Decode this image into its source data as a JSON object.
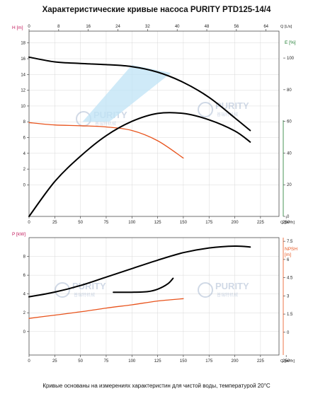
{
  "title": "Характеристические кривые насоса PURITY PTD125-14/4",
  "footnote": "Кривые основаны на измерениях характеристин для чистой воды, температурой 20°С",
  "watermark": {
    "brand": "PURITY",
    "sub": "普瑞特机械"
  },
  "colors": {
    "black": "#000000",
    "orange": "#e8531c",
    "blue_area": "#bfe3f5",
    "pink_axis": "#c2185b",
    "green_axis": "#1b7a2e",
    "blue_axis": "#1565c0",
    "grid": "#d9d9d9"
  },
  "chart_data": [
    {
      "type": "line",
      "id": "upper",
      "top_axis": {
        "label": "Q [L/s]",
        "ticks": [
          0,
          8,
          16,
          24,
          32,
          40,
          48,
          56,
          64
        ],
        "range": [
          0,
          67.5
        ]
      },
      "bottom_axis": {
        "label": "Q [m³/h]",
        "ticks": [
          0,
          25,
          50,
          75,
          100,
          125,
          150,
          175,
          200,
          225,
          250
        ],
        "range": [
          0,
          243
        ]
      },
      "left_axis": {
        "label": "H [m]",
        "ticks": [
          0,
          2,
          4,
          6,
          8,
          10,
          12,
          14,
          16,
          18
        ],
        "range": [
          -4,
          19.5
        ]
      },
      "right_axis": {
        "label": "E [%]",
        "ticks": [
          0,
          20,
          40,
          60,
          80,
          100
        ],
        "range": [
          0,
          117
        ]
      },
      "series": [
        {
          "color": "black",
          "axis": "left",
          "x": [
            0,
            25,
            50,
            75,
            100,
            125,
            150,
            175,
            200,
            215
          ],
          "y": [
            16.2,
            15.6,
            15.4,
            15.25,
            15.0,
            14.3,
            13.0,
            11.1,
            8.5,
            6.9
          ]
        },
        {
          "color": "orange",
          "axis": "left",
          "x": [
            0,
            25,
            50,
            75,
            100,
            125,
            150
          ],
          "y": [
            7.9,
            7.6,
            7.5,
            7.35,
            6.9,
            5.6,
            3.4
          ]
        },
        {
          "color": "black",
          "axis": "right",
          "x": [
            0,
            25,
            50,
            75,
            100,
            125,
            150,
            175,
            200,
            215
          ],
          "y": [
            0,
            22,
            38,
            51,
            60,
            65,
            65,
            61,
            54,
            47
          ]
        }
      ],
      "operating_range": {
        "color": "blue_area",
        "polygon": [
          [
            52,
            8
          ],
          [
            100,
            15.2
          ],
          [
            138,
            14.2
          ],
          [
            78,
            8
          ]
        ]
      }
    },
    {
      "type": "line",
      "id": "lower",
      "bottom_axis": {
        "label": "Q [m³/h]",
        "ticks": [
          0,
          25,
          50,
          75,
          100,
          125,
          150,
          175,
          200,
          225,
          250
        ],
        "range": [
          0,
          243
        ]
      },
      "left_axis": {
        "label": "P [kW]",
        "ticks": [
          0,
          2,
          4,
          6,
          8
        ],
        "range": [
          -2.5,
          10
        ]
      },
      "right_axis": {
        "label": "NPSH\n[m]",
        "ticks": [
          0,
          1.5,
          3,
          4.5,
          6,
          7.5
        ],
        "range": [
          -1.875,
          7.8
        ]
      },
      "series": [
        {
          "color": "black",
          "axis": "left",
          "x": [
            0,
            25,
            50,
            75,
            100,
            125,
            150,
            175,
            200,
            215
          ],
          "y": [
            3.7,
            4.2,
            4.9,
            5.8,
            6.7,
            7.6,
            8.4,
            8.9,
            9.1,
            9.0
          ]
        },
        {
          "color": "orange",
          "axis": "left",
          "x": [
            0,
            25,
            50,
            75,
            100,
            125,
            150
          ],
          "y": [
            1.4,
            1.75,
            2.1,
            2.5,
            2.85,
            3.25,
            3.5
          ]
        },
        {
          "color": "black",
          "axis": "right",
          "x": [
            82,
            100,
            115,
            125,
            135,
            140
          ],
          "y": [
            3.3,
            3.3,
            3.35,
            3.55,
            4.0,
            4.45
          ]
        }
      ]
    }
  ]
}
